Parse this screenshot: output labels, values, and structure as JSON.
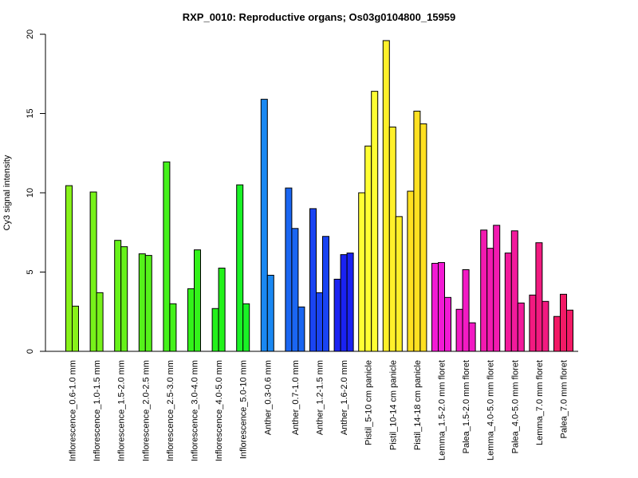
{
  "chart_data": {
    "type": "bar",
    "title": "RXP_0010: Reproductive organs; Os03g0104800_15959",
    "xlabel": "",
    "ylabel": "Cy3 signal intensity",
    "ylim": [
      0,
      20
    ],
    "yticks": [
      0,
      5,
      10,
      15,
      20
    ],
    "grid": false,
    "legend": "none",
    "groups": [
      {
        "label": "Inflorescence_0.6-1.0 mm",
        "color": "#88f21a",
        "values": [
          10.45,
          2.85
        ]
      },
      {
        "label": "Inflorescence_1.0-1.5 mm",
        "color": "#77f21a",
        "values": [
          10.05,
          3.7
        ]
      },
      {
        "label": "Inflorescence_1.5-2.0 mm",
        "color": "#66f21a",
        "values": [
          7.0,
          6.6
        ]
      },
      {
        "label": "Inflorescence_2.0-2.5 mm",
        "color": "#55f21a",
        "values": [
          6.15,
          6.05
        ]
      },
      {
        "label": "Inflorescence_2.5-3.0 mm",
        "color": "#44f21a",
        "values": [
          11.95,
          3.0
        ]
      },
      {
        "label": "Inflorescence_3.0-4.0 mm",
        "color": "#33f21a",
        "values": [
          3.95,
          6.4
        ]
      },
      {
        "label": "Inflorescence_4.0-5.0 mm",
        "color": "#22f21a",
        "values": [
          2.7,
          5.25
        ]
      },
      {
        "label": "Inflorescence_5.0-10 mm",
        "color": "#1af226",
        "values": [
          10.5,
          3.0
        ]
      },
      {
        "label": "Anther_0.3-0.6 mm",
        "color": "#1a88f2",
        "values": [
          15.9,
          4.8
        ]
      },
      {
        "label": "Anther_0.7-1.0 mm",
        "color": "#1a66f2",
        "values": [
          10.3,
          7.75,
          2.8
        ]
      },
      {
        "label": "Anther_1.2-1.5 mm",
        "color": "#1a44f2",
        "values": [
          9.0,
          3.7,
          7.25
        ]
      },
      {
        "label": "Anther_1.6-2.0 mm",
        "color": "#1a22f2",
        "values": [
          4.55,
          6.1,
          6.2
        ]
      },
      {
        "label": "Pistil_5-10 cm panicle",
        "color": "#ffff33",
        "values": [
          10.0,
          12.95,
          16.4
        ]
      },
      {
        "label": "Pistil_10-14 cm panicle",
        "color": "#fff02a",
        "values": [
          19.6,
          14.15,
          8.5
        ]
      },
      {
        "label": "Pistil_14-18 cm panicle",
        "color": "#ffe021",
        "values": [
          10.1,
          15.15,
          14.35
        ]
      },
      {
        "label": "Lemma_1.5-2.0 mm floret",
        "color": "#f21ad4",
        "values": [
          5.55,
          5.6,
          3.4
        ]
      },
      {
        "label": "Palea_1.5-2.0 mm floret",
        "color": "#f21ac4",
        "values": [
          2.65,
          5.15,
          1.8
        ]
      },
      {
        "label": "Lemma_4.0-5.0 mm floret",
        "color": "#f21ab0",
        "values": [
          7.65,
          6.5,
          7.95
        ]
      },
      {
        "label": "Palea_4.0-5.0 mm floret",
        "color": "#f21a9c",
        "values": [
          6.2,
          7.6,
          3.05
        ]
      },
      {
        "label": "Lemma_7.0 mm floret",
        "color": "#f21a80",
        "values": [
          3.55,
          6.85,
          3.15
        ]
      },
      {
        "label": "Palea_7.0 mm floret",
        "color": "#f21a66",
        "values": [
          2.2,
          3.6,
          2.6
        ]
      }
    ]
  }
}
